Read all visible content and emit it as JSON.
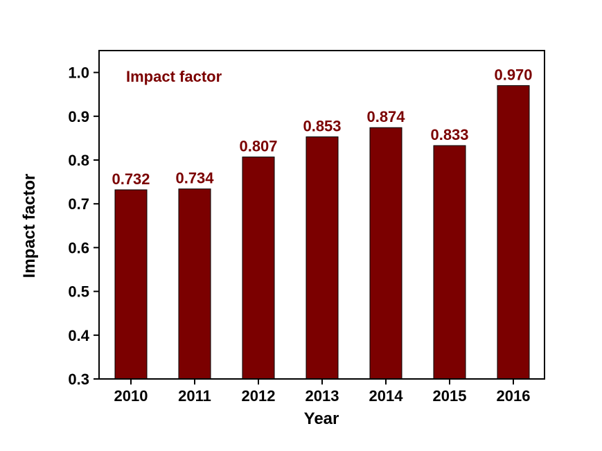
{
  "chart_data": {
    "type": "bar",
    "categories": [
      "2010",
      "2011",
      "2012",
      "2013",
      "2014",
      "2015",
      "2016"
    ],
    "series": [
      {
        "name": "Impact factor",
        "values": [
          0.732,
          0.734,
          0.807,
          0.853,
          0.874,
          0.833,
          0.97
        ],
        "labels": [
          "0.732",
          "0.734",
          "0.807",
          "0.853",
          "0.874",
          "0.833",
          "0.970"
        ]
      }
    ],
    "xlabel": "Year",
    "ylabel": "Impact factor",
    "ylim": [
      0.3,
      1.05
    ],
    "yticks": [
      0.3,
      0.4,
      0.5,
      0.6,
      0.7,
      0.8,
      0.9,
      1.0
    ],
    "ytick_labels": [
      "0.3",
      "0.4",
      "0.5",
      "0.6",
      "0.7",
      "0.8",
      "0.9",
      "1.0"
    ],
    "grid": false,
    "legend": "top-left",
    "bar_color": "#7b0000",
    "label_color": "#7b0000"
  }
}
